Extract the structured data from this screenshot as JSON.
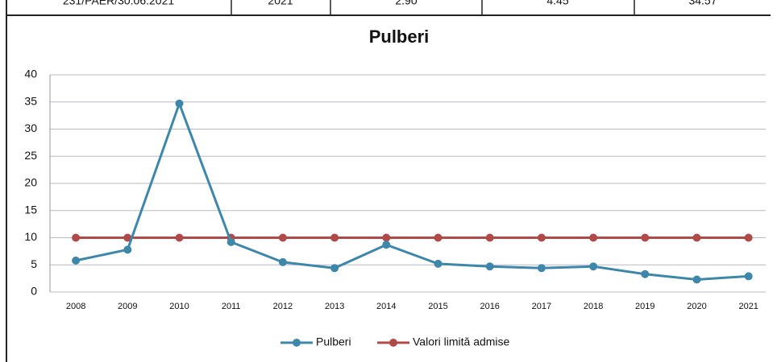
{
  "table": {
    "rows": [
      [
        "231/PAER/30.06.2021",
        "2021",
        "2.90",
        "4.45",
        "34.57"
      ]
    ]
  },
  "chart_data": {
    "type": "line",
    "title": "Pulberi",
    "categories": [
      "2008",
      "2009",
      "2010",
      "2011",
      "2012",
      "2013",
      "2014",
      "2015",
      "2016",
      "2017",
      "2018",
      "2019",
      "2020",
      "2021"
    ],
    "series": [
      {
        "name": "Pulberi",
        "color": "#3d87ab",
        "values": [
          5.8,
          7.8,
          34.7,
          9.2,
          5.5,
          4.4,
          8.7,
          5.2,
          4.7,
          4.4,
          4.7,
          3.3,
          2.3,
          2.9
        ]
      },
      {
        "name": "Valori limită admise",
        "color": "#b04a48",
        "values": [
          10,
          10,
          10,
          10,
          10,
          10,
          10,
          10,
          10,
          10,
          10,
          10,
          10,
          10
        ]
      }
    ],
    "ylim": [
      0,
      40
    ],
    "yticks": [
      0,
      5,
      10,
      15,
      20,
      25,
      30,
      35,
      40
    ],
    "grid": true,
    "legend": "bottom"
  }
}
